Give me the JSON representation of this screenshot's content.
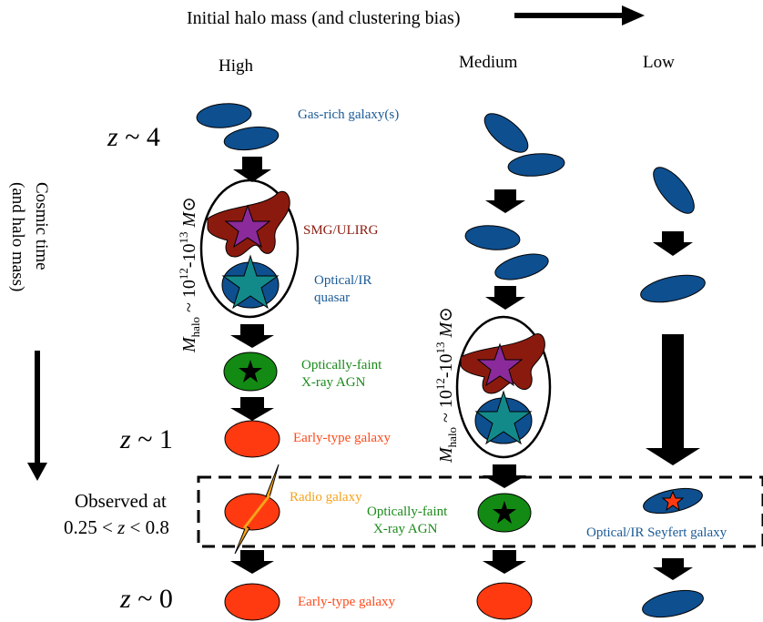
{
  "header": {
    "axis_title": "Initial halo mass (and clustering bias)",
    "col_high": "High",
    "col_medium": "Medium",
    "col_low": "Low"
  },
  "left_axis": {
    "title_line1": "Cosmic time",
    "title_line2": "(and halo mass)",
    "z4": "z ~ 4",
    "z1": "z ~ 1",
    "z0": "z ~ 0",
    "observed_line1": "Observed at",
    "observed_line2": "0.25 < z < 0.8"
  },
  "halo_label": "M_halo ~ 10^12-10^13 M_sun",
  "labels": {
    "gas_rich": "Gas-rich galaxy(s)",
    "smg": "SMG/ULIRG",
    "quasar_line1": "Optical/IR",
    "quasar_line2": "quasar",
    "faint_agn_line1": "Optically-faint",
    "faint_agn_line2": "X-ray AGN",
    "early_type_1": "Early-type galaxy",
    "radio": "Radio galaxy",
    "medium_agn_line1": "Optically-faint",
    "medium_agn_line2": "X-ray AGN",
    "seyfert": "Optical/IR Seyfert galaxy",
    "early_type_0": "Early-type galaxy"
  },
  "colors": {
    "gas_blue": "#0e4f8f",
    "smg_red": "#8b1a0e",
    "star_purple": "#8b2a9a",
    "quasar_teal": "#138a8a",
    "agn_green": "#138a13",
    "early_orange": "#ff3a10",
    "radio_amber": "#f7a21b",
    "label_blue": "#1a5a96",
    "label_green": "#1a8a1a"
  }
}
